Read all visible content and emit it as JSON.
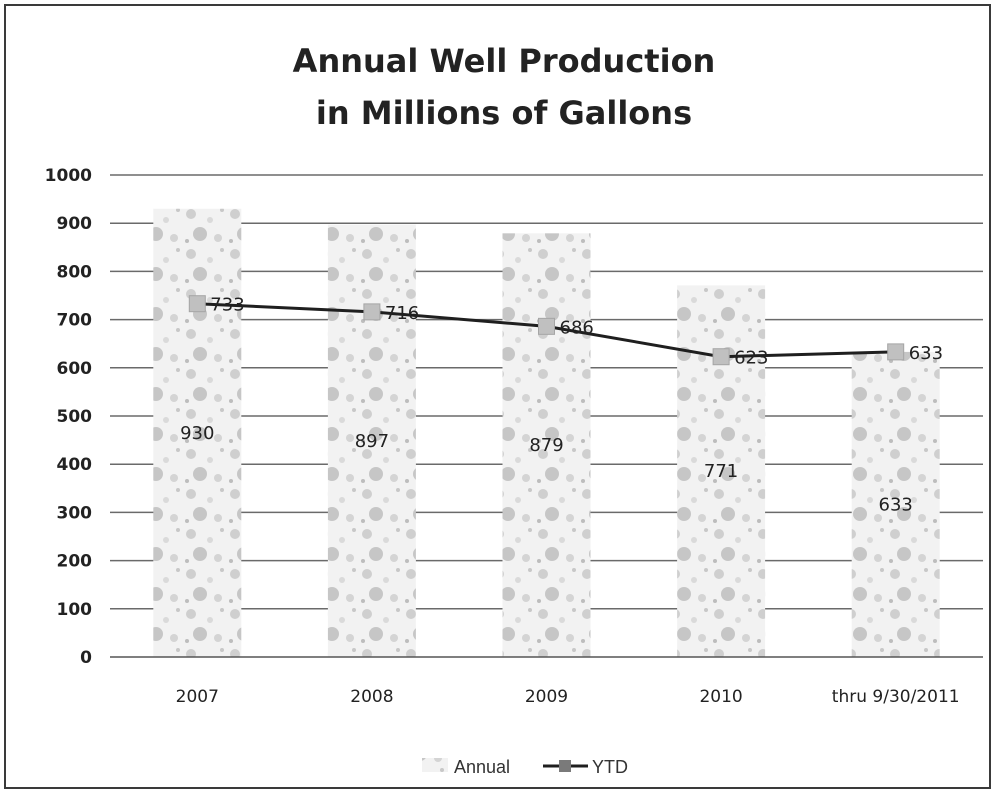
{
  "chart_data": {
    "type": "bar",
    "title_lines": [
      "Annual Well Production",
      "in Millions of Gallons"
    ],
    "categories": [
      "2007",
      "2008",
      "2009",
      "2010",
      "thru 9/30/2011"
    ],
    "ylim": [
      0,
      1000
    ],
    "yticks": [
      0,
      100,
      200,
      300,
      400,
      500,
      600,
      700,
      800,
      900,
      1000
    ],
    "grid": true,
    "legend_position": "bottom",
    "series": [
      {
        "name": "Annual",
        "kind": "bar",
        "values": [
          930,
          897,
          879,
          771,
          633
        ],
        "labels": [
          "930",
          "897",
          "879",
          "771",
          "633"
        ],
        "color": "#d9d9d9"
      },
      {
        "name": "YTD",
        "kind": "line",
        "values": [
          733,
          716,
          686,
          623,
          633
        ],
        "labels": [
          "733",
          "716",
          "686",
          "623",
          "633"
        ],
        "color": "#1f1f1f",
        "marker_color": "#c0c0c0"
      }
    ]
  }
}
